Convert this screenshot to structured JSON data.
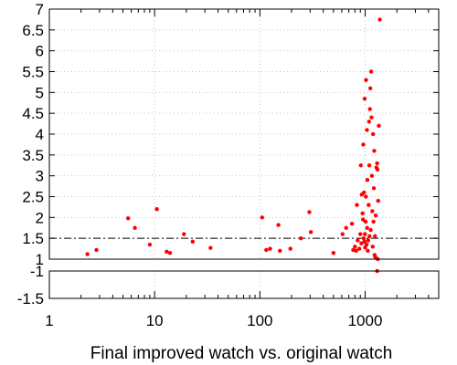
{
  "chart_data": {
    "type": "scatter",
    "xlabel": "Final improved watch vs. original watch",
    "ylabel": "",
    "xscale": "log",
    "xlim": [
      1,
      5000
    ],
    "ylim": [
      -1.5,
      7
    ],
    "y_axis_break": [
      -1,
      1
    ],
    "x_tick_labels": [
      "1",
      "10",
      "100",
      "1000"
    ],
    "x_tick_values": [
      1,
      10,
      100,
      1000
    ],
    "y_tick_labels": [
      "7",
      "6.5",
      "6",
      "5.5",
      "5",
      "4.5",
      "4",
      "3.5",
      "3",
      "2.5",
      "2",
      "1.5",
      "1",
      "-1",
      "-1.5"
    ],
    "y_tick_values": [
      7,
      6.5,
      6,
      5.5,
      5,
      4.5,
      4,
      3.5,
      3,
      2.5,
      2,
      1.5,
      1,
      -1,
      -1.5
    ],
    "reference_lines": [
      {
        "y": 1.5,
        "style": "dash-dot"
      },
      {
        "y": 1,
        "style": "dashed"
      },
      {
        "y": -1,
        "style": "dashed"
      }
    ],
    "grid": true,
    "point_color": "#ff0000",
    "points": [
      [
        2.3,
        1.12
      ],
      [
        2.8,
        1.22
      ],
      [
        5.6,
        1.98
      ],
      [
        6.5,
        1.75
      ],
      [
        9,
        1.35
      ],
      [
        10.5,
        2.2
      ],
      [
        13,
        1.18
      ],
      [
        14,
        1.15
      ],
      [
        19,
        1.6
      ],
      [
        23,
        1.42
      ],
      [
        34,
        1.27
      ],
      [
        105,
        2.0
      ],
      [
        115,
        1.22
      ],
      [
        125,
        1.25
      ],
      [
        150,
        1.82
      ],
      [
        155,
        1.2
      ],
      [
        195,
        1.25
      ],
      [
        245,
        1.5
      ],
      [
        295,
        2.13
      ],
      [
        305,
        1.65
      ],
      [
        500,
        1.15
      ],
      [
        610,
        1.6
      ],
      [
        660,
        1.75
      ],
      [
        750,
        1.85
      ],
      [
        770,
        1.22
      ],
      [
        800,
        1.3
      ],
      [
        820,
        1.2
      ],
      [
        835,
        2.3
      ],
      [
        850,
        1.45
      ],
      [
        880,
        1.25
      ],
      [
        900,
        1.6
      ],
      [
        910,
        3.25
      ],
      [
        920,
        1.38
      ],
      [
        930,
        2.55
      ],
      [
        945,
        2.1
      ],
      [
        955,
        1.95
      ],
      [
        960,
        3.75
      ],
      [
        970,
        1.5
      ],
      [
        975,
        2.6
      ],
      [
        985,
        1.42
      ],
      [
        990,
        4.85
      ],
      [
        995,
        1.6
      ],
      [
        1000,
        1.28
      ],
      [
        1010,
        1.9
      ],
      [
        1015,
        2.5
      ],
      [
        1020,
        5.3
      ],
      [
        1030,
        1.35
      ],
      [
        1040,
        4.1
      ],
      [
        1045,
        1.75
      ],
      [
        1050,
        2.9
      ],
      [
        1060,
        1.2
      ],
      [
        1070,
        1.45
      ],
      [
        1080,
        2.3
      ],
      [
        1090,
        4.3
      ],
      [
        1095,
        3.25
      ],
      [
        1100,
        1.55
      ],
      [
        1110,
        4.6
      ],
      [
        1120,
        5.1
      ],
      [
        1130,
        1.7
      ],
      [
        1140,
        5.5
      ],
      [
        1150,
        4.4
      ],
      [
        1160,
        3.0
      ],
      [
        1170,
        2.15
      ],
      [
        1180,
        1.3
      ],
      [
        1190,
        4.0
      ],
      [
        1200,
        1.9
      ],
      [
        1210,
        2.7
      ],
      [
        1220,
        3.6
      ],
      [
        1230,
        1.1
      ],
      [
        1240,
        1.55
      ],
      [
        1250,
        1.05
      ],
      [
        1260,
        2.05
      ],
      [
        1280,
        3.2
      ],
      [
        1300,
        3.3
      ],
      [
        1310,
        3.15
      ],
      [
        1320,
        1.0
      ],
      [
        1330,
        2.4
      ],
      [
        1350,
        4.2
      ],
      [
        1380,
        6.75
      ],
      [
        1300,
        -1.0
      ]
    ]
  }
}
